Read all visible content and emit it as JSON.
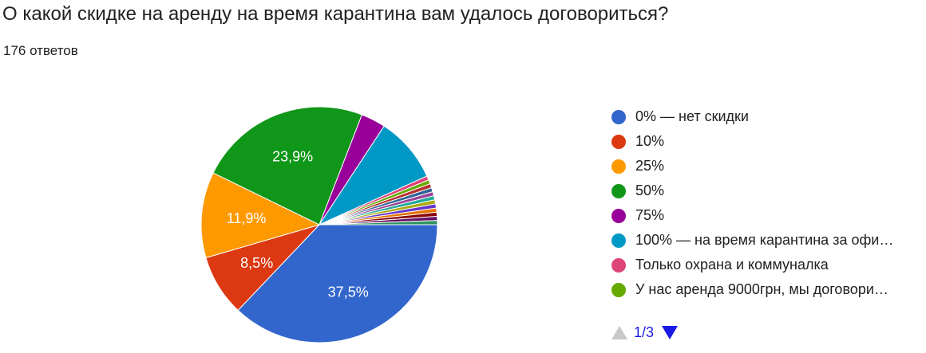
{
  "header": {
    "title": "О какой скидке на аренду на время карантина вам удалось договориться?",
    "responses": "176 ответов"
  },
  "chart_data": {
    "type": "pie",
    "categories": [
      "0% — нет скидки",
      "10%",
      "25%",
      "50%",
      "75%",
      "100% — на время карантина за офи…",
      "Только охрана и коммуналка",
      "У нас аренда 9000грн, мы договори…",
      "",
      "",
      "",
      "",
      "",
      "",
      "",
      "",
      "",
      ""
    ],
    "values": [
      37.5,
      8.5,
      11.9,
      23.9,
      3.4,
      9.1,
      0.57,
      0.57,
      0.57,
      0.57,
      0.57,
      0.57,
      0.57,
      0.57,
      0.57,
      0.57,
      0.57,
      0.57
    ],
    "slice_labels": [
      "37,5%",
      "8,5%",
      "11,9%",
      "23,9%",
      "",
      "",
      "",
      "",
      "",
      "",
      "",
      "",
      "",
      "",
      "",
      "",
      "",
      ""
    ],
    "colors": [
      "#3366cc",
      "#dc3912",
      "#ff9900",
      "#109618",
      "#990099",
      "#0099c6",
      "#dd4477",
      "#66aa00",
      "#b82e2e",
      "#316395",
      "#994499",
      "#22aa99",
      "#aaaa11",
      "#6633cc",
      "#e67300",
      "#8b0707",
      "#651067",
      "#329262"
    ],
    "legend_position": "right"
  },
  "pager": {
    "text": "1/3"
  }
}
